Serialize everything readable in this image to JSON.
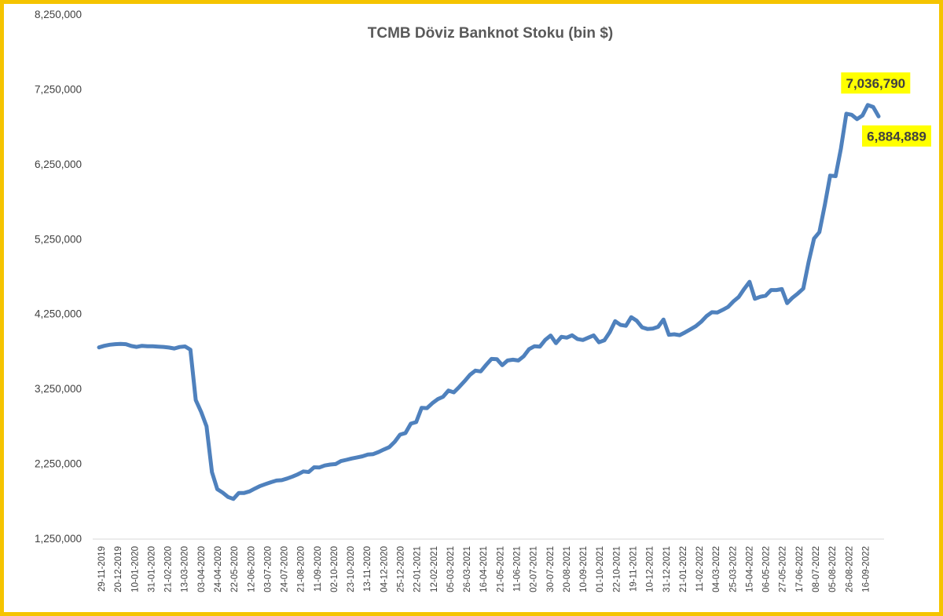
{
  "colors": {
    "frame": "#f5c400",
    "line": "#4f81bd",
    "highlight": "#ffff00",
    "axis_text": "#404040",
    "title_text": "#595959"
  },
  "chart_data": {
    "type": "line",
    "title": "TCMB Döviz Banknot Stoku (bin $)",
    "xlabel": "",
    "ylabel": "",
    "ylim": [
      1250000,
      8250000
    ],
    "y_ticks": [
      "1,250,000",
      "2,250,000",
      "3,250,000",
      "4,250,000",
      "5,250,000",
      "6,250,000",
      "7,250,000",
      "8,250,000"
    ],
    "x_ticks": [
      "29-11-2019",
      "20-12-2019",
      "10-01-2020",
      "31-01-2020",
      "21-02-2020",
      "13-03-2020",
      "03-04-2020",
      "24-04-2020",
      "22-05-2020",
      "12-06-2020",
      "03-07-2020",
      "24-07-2020",
      "21-08-2020",
      "11-09-2020",
      "02-10-2020",
      "23-10-2020",
      "13-11-2020",
      "04-12-2020",
      "25-12-2020",
      "22-01-2021",
      "12-02-2021",
      "05-03-2021",
      "26-03-2021",
      "16-04-2021",
      "21-05-2021",
      "11-06-2021",
      "02-07-2021",
      "30-07-2021",
      "20-08-2021",
      "10-09-2021",
      "01-10-2021",
      "22-10-2021",
      "19-11-2021",
      "10-12-2021",
      "31-12-2021",
      "21-01-2022",
      "11-02-2022",
      "04-03-2022",
      "25-03-2022",
      "15-04-2022",
      "06-05-2022",
      "27-05-2022",
      "17-06-2022",
      "08-07-2022",
      "05-08-2022",
      "26-08-2022",
      "16-09-2022"
    ],
    "grid": false,
    "series": [
      {
        "values": [
          3800000,
          3820000,
          3835000,
          3843000,
          3846000,
          3843000,
          3818000,
          3806000,
          3820000,
          3815000,
          3814000,
          3810000,
          3806000,
          3797000,
          3785000,
          3805000,
          3812000,
          3769000,
          3096000,
          2937000,
          2746000,
          2134000,
          1906000,
          1860000,
          1802000,
          1776000,
          1856000,
          1856000,
          1877000,
          1914000,
          1949000,
          1975000,
          1999000,
          2021000,
          2026000,
          2049000,
          2075000,
          2105000,
          2143000,
          2136000,
          2198000,
          2196000,
          2222000,
          2235000,
          2241000,
          2281000,
          2298000,
          2316000,
          2330000,
          2345000,
          2368000,
          2374000,
          2403000,
          2436000,
          2468000,
          2539000,
          2634000,
          2656000,
          2781000,
          2802000,
          2992000,
          2988000,
          3054000,
          3108000,
          3140000,
          3223000,
          3199000,
          3271000,
          3349000,
          3434000,
          3489000,
          3479000,
          3566000,
          3645000,
          3642000,
          3562000,
          3625000,
          3635000,
          3625000,
          3682000,
          3776000,
          3815000,
          3810000,
          3899000,
          3958000,
          3856000,
          3941000,
          3929000,
          3961000,
          3911000,
          3898000,
          3930000,
          3960000,
          3868000,
          3895000,
          4002000,
          4150000,
          4100000,
          4088000,
          4203000,
          4157000,
          4068000,
          4046000,
          4051000,
          4074000,
          4172000,
          3967000,
          3975000,
          3963000,
          4000000,
          4041000,
          4082000,
          4141000,
          4218000,
          4269000,
          4266000,
          4300000,
          4339000,
          4414000,
          4473000,
          4580000,
          4676000,
          4448000,
          4475000,
          4490000,
          4566000,
          4566000,
          4578000,
          4391000,
          4463000,
          4521000,
          4586000,
          4945000,
          5253000,
          5339000,
          5700000,
          6093000,
          6086000,
          6455000,
          6920000,
          6906000,
          6848000,
          6896000,
          7036790,
          7009000,
          6884889
        ],
        "labels": [
          "7,036,790",
          "6,884,889"
        ]
      }
    ]
  }
}
